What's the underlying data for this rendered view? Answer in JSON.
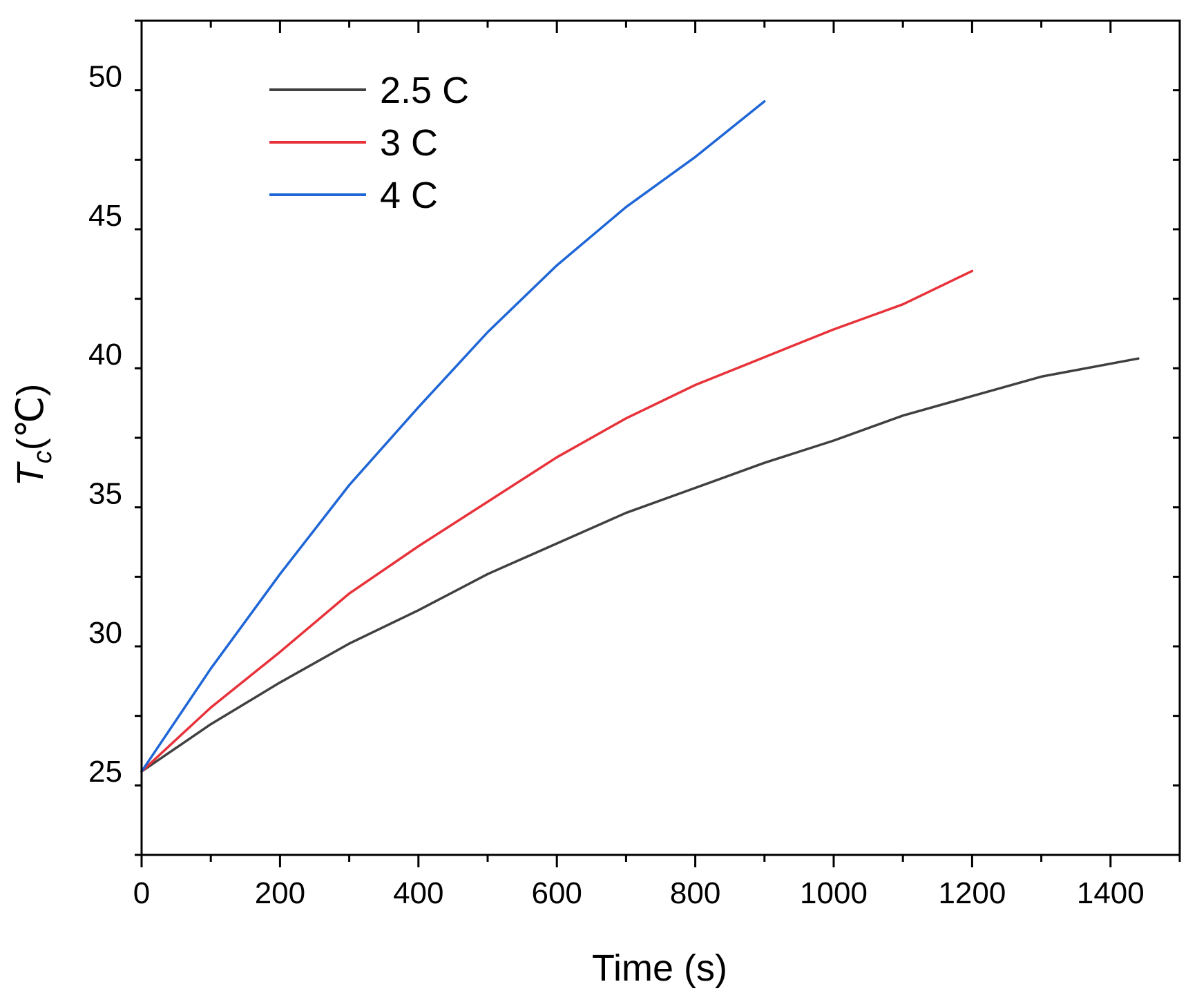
{
  "chart_data": {
    "type": "line",
    "title": "",
    "xlabel": "Time (s)",
    "ylabel_main": "T",
    "ylabel_sub": "c",
    "ylabel_unit": "(℃)",
    "xlim": [
      0,
      1500
    ],
    "ylim": [
      22,
      52
    ],
    "x_ticks": [
      0,
      200,
      400,
      600,
      800,
      1000,
      1200,
      1400
    ],
    "x_tick_labels": [
      "0",
      "200",
      "400",
      "600",
      "800",
      "1000",
      "1200",
      "1400"
    ],
    "y_ticks": [
      25,
      30,
      35,
      40,
      45,
      50
    ],
    "y_tick_labels": [
      "25",
      "30",
      "35",
      "40",
      "45",
      "50"
    ],
    "x_minor_step": 100,
    "y_minor_step": 2.5,
    "grid": false,
    "legend_position": "top-left",
    "series": [
      {
        "name": "2.5 C",
        "color": "#404040",
        "x": [
          0,
          100,
          200,
          300,
          400,
          500,
          600,
          700,
          800,
          900,
          1000,
          1100,
          1200,
          1300,
          1440
        ],
        "y": [
          25.0,
          26.7,
          28.2,
          29.6,
          30.8,
          32.1,
          33.2,
          34.3,
          35.2,
          36.1,
          36.9,
          37.8,
          38.5,
          39.2,
          39.85
        ]
      },
      {
        "name": "3 C",
        "color": "#e8323a",
        "x": [
          0,
          100,
          200,
          300,
          400,
          500,
          600,
          700,
          800,
          900,
          1000,
          1100,
          1200
        ],
        "y": [
          25.0,
          27.3,
          29.3,
          31.4,
          33.1,
          34.7,
          36.3,
          37.7,
          38.9,
          39.9,
          40.9,
          41.8,
          43.0
        ]
      },
      {
        "name": "4 C",
        "color": "#1f66d6",
        "x": [
          0,
          100,
          200,
          300,
          400,
          500,
          600,
          700,
          800,
          900
        ],
        "y": [
          25.0,
          28.7,
          32.1,
          35.3,
          38.1,
          40.8,
          43.2,
          45.3,
          47.1,
          49.1
        ]
      }
    ]
  }
}
